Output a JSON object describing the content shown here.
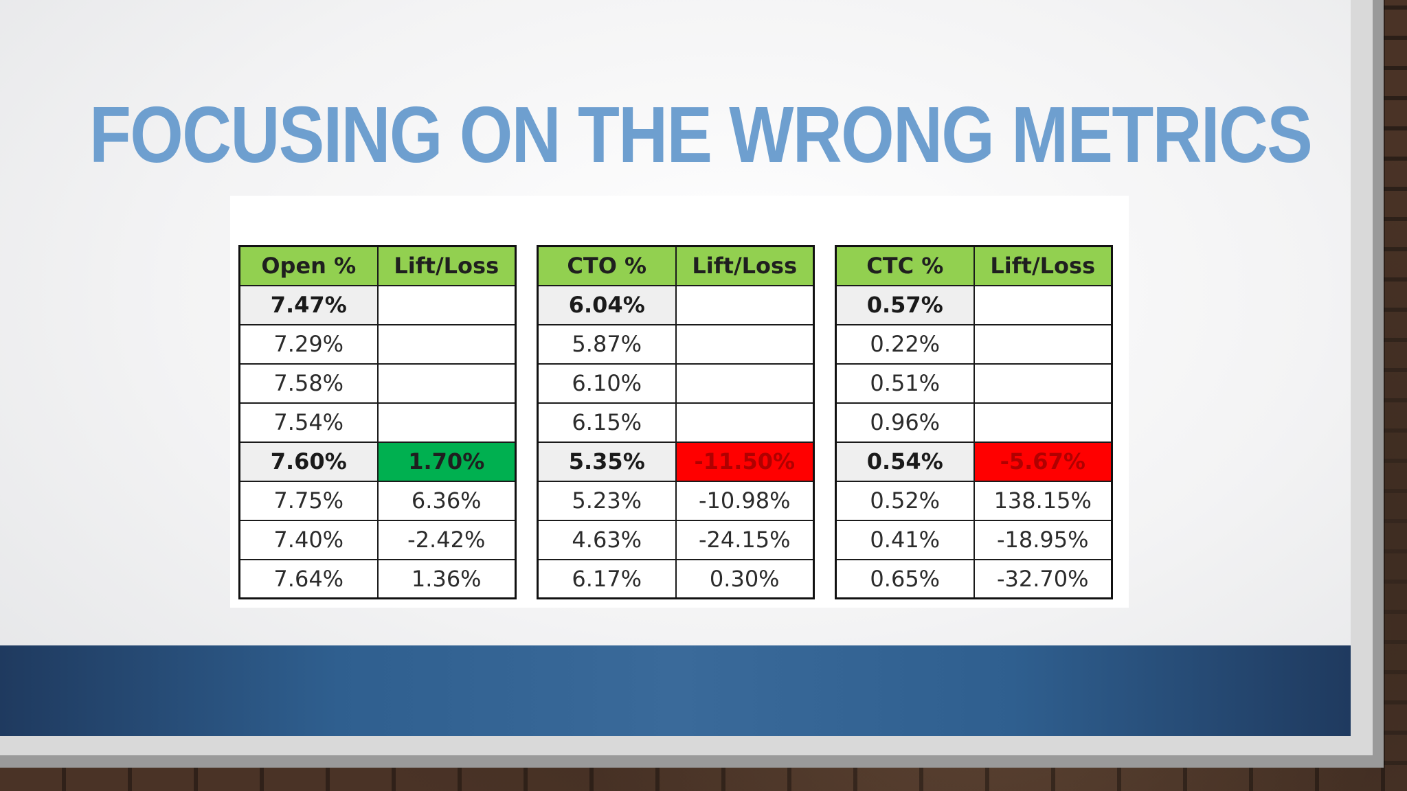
{
  "slide": {
    "title": "FOCUSING ON THE WRONG METRICS"
  },
  "colors": {
    "title": "#6e9fcf",
    "header_green": "#92d050",
    "positive_green": "#00b050",
    "negative_red": "#ff0000",
    "footer_blue": "#2f5f8f"
  },
  "tables": [
    {
      "headers": [
        "Open %",
        "Lift/Loss"
      ],
      "rows": [
        {
          "value": "7.47%",
          "lift": ""
        },
        {
          "value": "7.29%",
          "lift": ""
        },
        {
          "value": "7.58%",
          "lift": ""
        },
        {
          "value": "7.54%",
          "lift": ""
        },
        {
          "value": "7.60%",
          "lift": "1.70%"
        },
        {
          "value": "7.75%",
          "lift": "6.36%"
        },
        {
          "value": "7.40%",
          "lift": "-2.42%"
        },
        {
          "value": "7.64%",
          "lift": "1.36%"
        }
      ]
    },
    {
      "headers": [
        "CTO %",
        "Lift/Loss"
      ],
      "rows": [
        {
          "value": "6.04%",
          "lift": ""
        },
        {
          "value": "5.87%",
          "lift": ""
        },
        {
          "value": "6.10%",
          "lift": ""
        },
        {
          "value": "6.15%",
          "lift": ""
        },
        {
          "value": "5.35%",
          "lift": "-11.50%"
        },
        {
          "value": "5.23%",
          "lift": "-10.98%"
        },
        {
          "value": "4.63%",
          "lift": "-24.15%"
        },
        {
          "value": "6.17%",
          "lift": "0.30%"
        }
      ]
    },
    {
      "headers": [
        "CTC %",
        "Lift/Loss"
      ],
      "rows": [
        {
          "value": "0.57%",
          "lift": ""
        },
        {
          "value": "0.22%",
          "lift": ""
        },
        {
          "value": "0.51%",
          "lift": ""
        },
        {
          "value": "0.96%",
          "lift": ""
        },
        {
          "value": "0.54%",
          "lift": "-5.67%"
        },
        {
          "value": "0.52%",
          "lift": "138.15%"
        },
        {
          "value": "0.41%",
          "lift": "-18.95%"
        },
        {
          "value": "0.65%",
          "lift": "-32.70%"
        }
      ]
    }
  ]
}
